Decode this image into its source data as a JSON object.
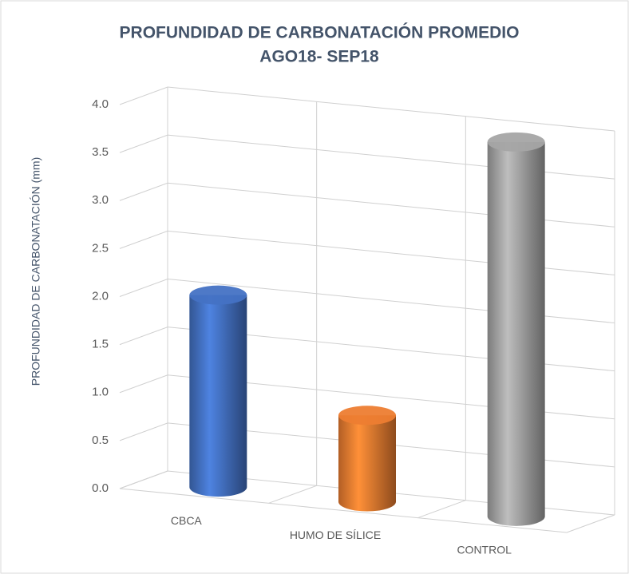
{
  "chart_data": {
    "type": "bar3d",
    "title": "PROFUNDIDAD DE CARBONATACIÓN PROMEDIO",
    "subtitle": "AGO18- SEP18",
    "y_label": "PROFUNDIDAD DE CARBONATACIÓN (mm)",
    "categories": [
      "CBCA",
      "HUMO DE SÍLICE",
      "CONTROL"
    ],
    "values": [
      2.0,
      0.9,
      3.9
    ],
    "colors": [
      "#4472c4",
      "#ed7d31",
      "#a5a5a5"
    ],
    "ylim": [
      0,
      4
    ],
    "yticks": [
      {
        "value": 0,
        "label": "0.0"
      },
      0.5,
      {
        "value": 1,
        "label": "1.0"
      },
      1.5,
      {
        "value": 2,
        "label": "2.0"
      },
      2.5,
      {
        "value": 3,
        "label": "3.0"
      },
      3.5,
      {
        "value": 4,
        "label": "4.0"
      }
    ],
    "grid": true
  }
}
